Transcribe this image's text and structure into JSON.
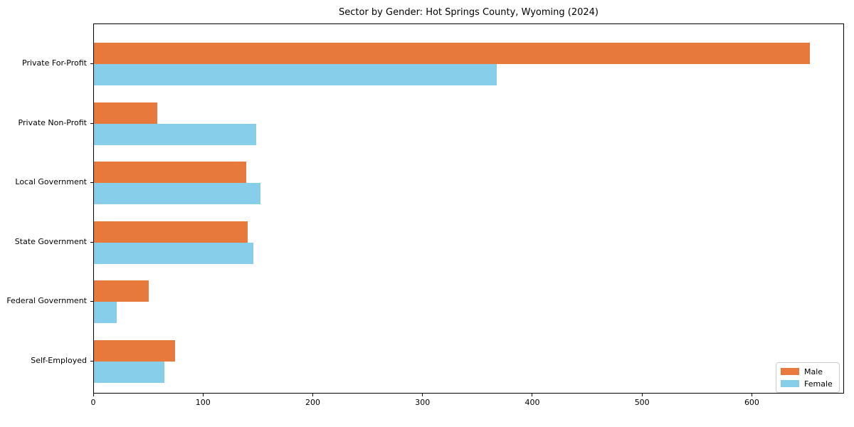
{
  "figure": {
    "background": "#ffffff",
    "text_color": "#000000",
    "spine_color": "#000000"
  },
  "chart_data": {
    "type": "bar",
    "orientation": "horizontal",
    "title": "Sector by Gender: Hot Springs County, Wyoming (2024)",
    "xlabel": "",
    "ylabel": "",
    "categories": [
      "Private For-Profit",
      "Private Non-Profit",
      "Local Government",
      "State Government",
      "Federal Government",
      "Self-Employed"
    ],
    "series": [
      {
        "name": "Male",
        "color": "#e8793d",
        "values": [
          652,
          58,
          139,
          140,
          50,
          74
        ]
      },
      {
        "name": "Female",
        "color": "#87ceeb",
        "values": [
          367,
          148,
          152,
          145,
          21,
          64
        ]
      }
    ],
    "xlim": [
      0,
      684
    ],
    "xticks": [
      0,
      100,
      200,
      300,
      400,
      500,
      600
    ],
    "grid": false,
    "legend": {
      "position": "lower right",
      "entries": [
        "Male",
        "Female"
      ]
    }
  }
}
